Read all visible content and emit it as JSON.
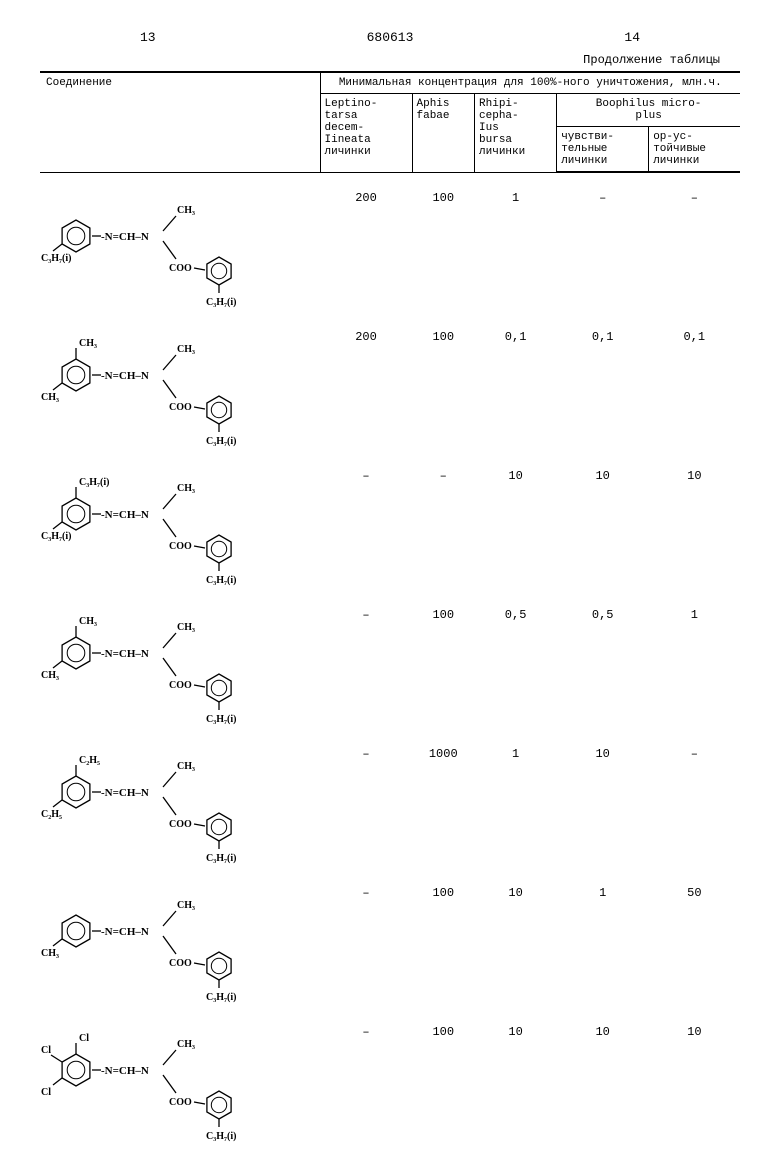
{
  "page": {
    "left_num": "13",
    "center_num": "680613",
    "right_num": "14",
    "table_caption": "Продолжение таблицы"
  },
  "headers": {
    "compound": "Соединение",
    "main": "Минимальная концентрация для 100%-ного уничтожения, млн.ч.",
    "col1": "Leptino-\ntarsa\ndecem-\nIineata\nличинки",
    "col2": "Aphis\nfabae",
    "col3": "Rhipi-\ncepha-\nIus\nbursa\nличинки",
    "col4": "Boophilus micro-\nplus",
    "col4a": "чувстви-\nтельные\nличинки",
    "col4b": "op-ус-\nтойчивые\nличинки"
  },
  "rows": [
    {
      "c1": "200",
      "c2": "100",
      "c3": "1",
      "c4": "–",
      "c5": "–",
      "sub1": "",
      "sub2": "C₃H₇(i)",
      "sub3": "",
      "ester_sub": "C₃H₇(i)"
    },
    {
      "c1": "200",
      "c2": "100",
      "c3": "0,1",
      "c4": "0,1",
      "c5": "0,1",
      "sub1": "CH₃",
      "sub2": "CH₃",
      "sub3": "",
      "ester_sub": "C₃H₇(i)"
    },
    {
      "c1": "–",
      "c2": "–",
      "c3": "10",
      "c4": "10",
      "c5": "10",
      "sub1": "C₃H₇(i)",
      "sub2": "C₃H₇(i)",
      "sub3": "",
      "ester_sub": "C₃H₇(i)"
    },
    {
      "c1": "–",
      "c2": "100",
      "c3": "0,5",
      "c4": "0,5",
      "c5": "1",
      "sub1": "CH₃",
      "sub2": "CH₃",
      "sub3": "",
      "ester_sub": "C₃H₇(i)"
    },
    {
      "c1": "–",
      "c2": "1000",
      "c3": "1",
      "c4": "10",
      "c5": "–",
      "sub1": "C₂H₅",
      "sub2": "C₂H₅",
      "sub3": "",
      "ester_sub": "C₃H₇(i)"
    },
    {
      "c1": "–",
      "c2": "100",
      "c3": "10",
      "c4": "1",
      "c5": "50",
      "sub1": "",
      "sub2": "CH₃",
      "sub3": "",
      "ester_sub": "C₃H₇(i)"
    },
    {
      "c1": "–",
      "c2": "100",
      "c3": "10",
      "c4": "10",
      "c5": "10",
      "sub1": "Cl",
      "sub2": "Cl",
      "sub3": "Cl",
      "ester_sub": "C₃H₇(i)"
    }
  ],
  "style": {
    "font_mono": "Courier New",
    "border_color": "#000000",
    "text_color": "#000000",
    "bg_color": "#ffffff",
    "table_border_thick": 2,
    "table_border_thin": 1,
    "font_size_body": 12,
    "font_size_header": 11
  }
}
